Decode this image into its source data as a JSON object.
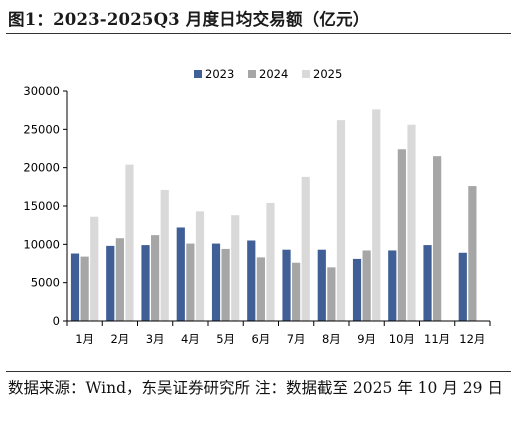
{
  "figure": {
    "title": "图1：2023-2025Q3 月度日均交易额（亿元）",
    "source_note": "数据来源：Wind，东吴证券研究所 注：数据截至 2025 年 10 月 29 日"
  },
  "chart_data": {
    "type": "bar",
    "categories": [
      "1月",
      "2月",
      "3月",
      "4月",
      "5月",
      "6月",
      "7月",
      "8月",
      "9月",
      "10月",
      "11月",
      "12月"
    ],
    "series": [
      {
        "name": "2023",
        "color": "#3f5f96",
        "values": [
          8800,
          9800,
          9900,
          12200,
          10100,
          10500,
          9300,
          9300,
          8100,
          9200,
          9900,
          8900
        ]
      },
      {
        "name": "2024",
        "color": "#a6a6a6",
        "values": [
          8400,
          10800,
          11200,
          10100,
          9400,
          8300,
          7600,
          7000,
          9200,
          22400,
          21500,
          17600
        ]
      },
      {
        "name": "2025",
        "color": "#d9d9d9",
        "values": [
          13600,
          20400,
          17100,
          14300,
          13800,
          15400,
          18800,
          26200,
          27600,
          25600,
          null,
          null
        ]
      }
    ],
    "title": "",
    "xlabel": "",
    "ylabel": "",
    "ylim": [
      0,
      30000
    ],
    "yticks": [
      "0",
      "5000",
      "10000",
      "15000",
      "20000",
      "25000",
      "30000"
    ],
    "grid": false,
    "legend": "top"
  }
}
